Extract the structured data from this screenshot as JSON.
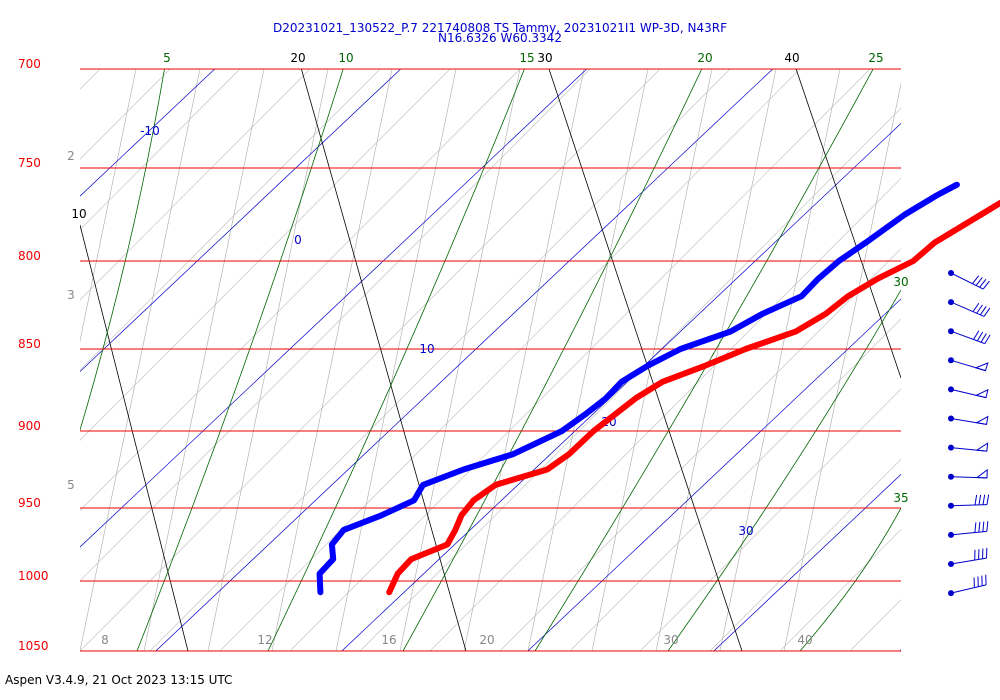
{
  "title": {
    "line1": "D20231021_130522_P.7 221740808 TS Tammy, 20231021I1 WP-3D, N43RF",
    "line2": "N16.6326 W60.3342"
  },
  "footer": "Aspen V3.4.9, 21 Oct 2023  13:15 UTC",
  "colors": {
    "isobar": "#ee0000",
    "dry_adiabat": "#000000",
    "isotherm": "#0000cc",
    "moist_adiabat": "#006600",
    "mixing_ratio": "#888888",
    "temperature": "#ff0000",
    "dewpoint": "#0000ff",
    "wind_barb": "#0000cc"
  },
  "chart_data": {
    "type": "skew-t",
    "pressure_levels": [
      "700",
      "750",
      "800",
      "850",
      "900",
      "950",
      "1000",
      "1050"
    ],
    "pressure_range": [
      700,
      1050
    ],
    "bottom_tick_labels": [
      "8",
      "12",
      "16",
      "20",
      "30",
      "40"
    ],
    "isotherm_labels": [
      "-10",
      "0",
      "10",
      "20",
      "30"
    ],
    "dry_adiabat_labels": [
      "10",
      "20",
      "30",
      "40"
    ],
    "moist_adiabat_labels": [
      "5",
      "10",
      "15",
      "20",
      "25",
      "30",
      "35"
    ],
    "mixing_ratio_labels": [
      "2",
      "3",
      "5"
    ],
    "series": [
      {
        "name": "temperature",
        "pressure": [
          759,
          765,
          775,
          790,
          800,
          810,
          820,
          830,
          840,
          850,
          860,
          870,
          880,
          890,
          900,
          915,
          925,
          935,
          945,
          955,
          965,
          975,
          985,
          995,
          1008
        ],
        "value": [
          20.3,
          20.1,
          19.5,
          18.6,
          18.5,
          17.6,
          17.0,
          16.8,
          16.2,
          14.5,
          13.3,
          11.9,
          11.4,
          11.2,
          11.0,
          11.0,
          10.7,
          8.8,
          8.5,
          8.7,
          9.2,
          9.6,
          8.5,
          8.6,
          9.2
        ]
      },
      {
        "name": "dewpoint",
        "pressure": [
          759,
          765,
          775,
          790,
          800,
          810,
          820,
          830,
          840,
          850,
          860,
          870,
          880,
          890,
          900,
          915,
          925,
          935,
          945,
          955,
          965,
          975,
          985,
          995,
          1008
        ],
        "value": [
          16.5,
          16.0,
          15.4,
          14.9,
          14.5,
          14.4,
          14.5,
          13.4,
          12.7,
          11.0,
          10.2,
          9.7,
          9.8,
          9.6,
          9.3,
          8.0,
          6.2,
          4.9,
          5.3,
          4.4,
          3.2,
          3.4,
          4.3,
          4.4,
          5.5
        ]
      }
    ],
    "wind_barb_count": 12
  }
}
